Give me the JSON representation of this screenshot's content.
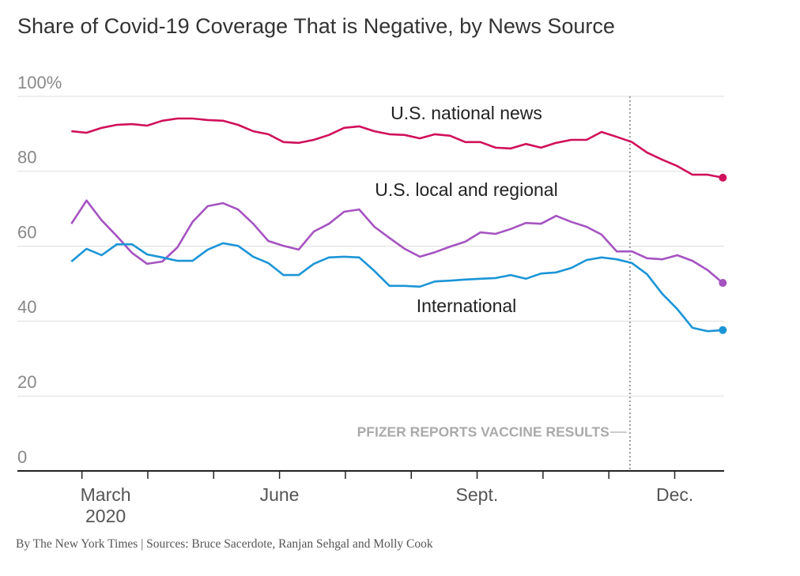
{
  "chart_data": {
    "type": "line",
    "title": "Share of Covid-19 Coverage That is Negative, by News Source",
    "source": "By The New York Times | Sources: Bruce Sacerdote, Ranjan Sehgal and Molly Cook",
    "x": [
      2.84,
      3.07,
      3.3,
      3.53,
      3.76,
      3.99,
      4.22,
      4.45,
      4.68,
      4.91,
      5.14,
      5.37,
      5.6,
      5.83,
      6.06,
      6.29,
      6.52,
      6.75,
      6.98,
      7.21,
      7.44,
      7.67,
      7.9,
      8.13,
      8.36,
      8.59,
      8.82,
      9.05,
      9.28,
      9.51,
      9.74,
      9.97,
      10.2,
      10.43,
      10.66,
      10.89,
      11.12,
      11.35,
      11.58,
      11.81,
      12.04,
      12.27,
      12.5,
      12.73
    ],
    "series": [
      {
        "name": "U.S. national news",
        "color": "#d0105a",
        "values": [
          90.7,
          90.3,
          91.6,
          92.4,
          92.6,
          92.2,
          93.5,
          94.1,
          94.1,
          93.7,
          93.5,
          92.4,
          90.7,
          89.9,
          87.8,
          87.6,
          88.4,
          89.7,
          91.6,
          92.0,
          90.7,
          89.9,
          89.7,
          88.8,
          89.9,
          89.5,
          87.8,
          87.8,
          86.3,
          86.1,
          87.3,
          86.3,
          87.6,
          88.4,
          88.4,
          90.5,
          89.2,
          87.8,
          85.0,
          83.1,
          81.4,
          79.1,
          79.1,
          78.3
        ]
      },
      {
        "name": "U.S. local and regional",
        "color": "#a553c1",
        "values": [
          66.0,
          72.2,
          66.9,
          62.7,
          58.2,
          55.3,
          55.9,
          59.7,
          66.5,
          70.7,
          71.5,
          69.8,
          66.0,
          61.4,
          60.1,
          59.1,
          63.9,
          66.0,
          69.2,
          69.8,
          65.2,
          62.2,
          59.3,
          57.2,
          58.4,
          59.9,
          61.2,
          63.7,
          63.3,
          64.6,
          66.2,
          66.0,
          68.1,
          66.5,
          65.2,
          63.1,
          58.6,
          58.6,
          56.8,
          56.5,
          57.6,
          56.1,
          53.6,
          50.2
        ]
      },
      {
        "name": "International",
        "color": "#1b95d6",
        "values": [
          55.9,
          59.3,
          57.6,
          60.5,
          60.5,
          57.8,
          57.0,
          56.1,
          56.1,
          59.1,
          60.8,
          60.1,
          57.2,
          55.5,
          52.3,
          52.3,
          55.3,
          57.0,
          57.2,
          57.0,
          53.4,
          49.4,
          49.4,
          49.2,
          50.6,
          50.8,
          51.1,
          51.3,
          51.5,
          52.3,
          51.3,
          52.7,
          53.0,
          54.2,
          56.3,
          57.0,
          56.5,
          55.5,
          52.5,
          47.3,
          43.2,
          38.2,
          37.3,
          37.6
        ]
      }
    ],
    "legend": "inline",
    "xlim": [
      2.02,
      12.75
    ],
    "xticks": [
      {
        "value": 3,
        "label": "March\n2020"
      },
      {
        "value": 6,
        "label": "June"
      },
      {
        "value": 9,
        "label": "Sept."
      },
      {
        "value": 12,
        "label": "Dec."
      }
    ],
    "xminor_ticks": [
      4,
      5,
      7,
      8,
      10,
      11
    ],
    "ylim": [
      0,
      100
    ],
    "yticks": [
      0,
      20,
      40,
      60,
      80,
      {
        "value": 100,
        "label": "100%"
      }
    ],
    "grid": true,
    "annotation": {
      "x": 11.32,
      "text": "PFIZER REPORTS VACCINE RESULTS"
    }
  }
}
